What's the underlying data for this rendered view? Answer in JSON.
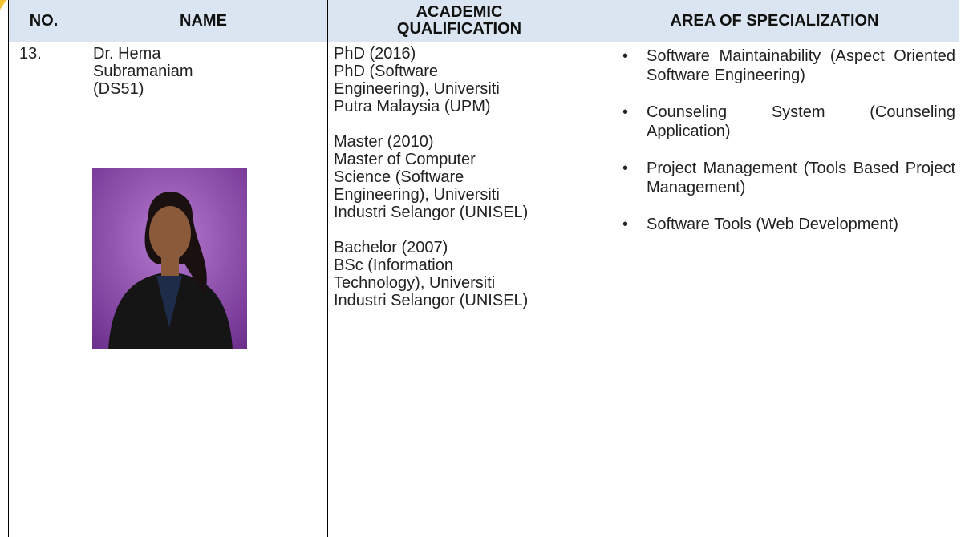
{
  "table": {
    "headers": [
      "NO.",
      "NAME",
      "ACADEMIC QUALIFICATION",
      "AREA OF SPECIALIZATION"
    ],
    "rows": [
      {
        "no": "13.",
        "name": [
          "Dr. Hema",
          "Subramaniam",
          "(DS51)"
        ],
        "qualifications": [
          {
            "level": "PhD (2016)",
            "detail": "PhD (Software Engineering), Universiti Putra Malaysia (UPM)"
          },
          {
            "level": "Master (2010)",
            "detail": "Master of Computer Science (Software Engineering), Universiti Industri Selangor (UNISEL)"
          },
          {
            "level": "Bachelor (2007)",
            "detail": "BSc (Information Technology), Universiti Industri Selangor (UNISEL)"
          }
        ],
        "specializations": [
          "Software Maintainability (Aspect Oriented Software Engineering)",
          "Counseling System (Counseling Application)",
          "Project Management (Tools Based Project Management)",
          "Software Tools (Web Development)"
        ]
      }
    ]
  }
}
